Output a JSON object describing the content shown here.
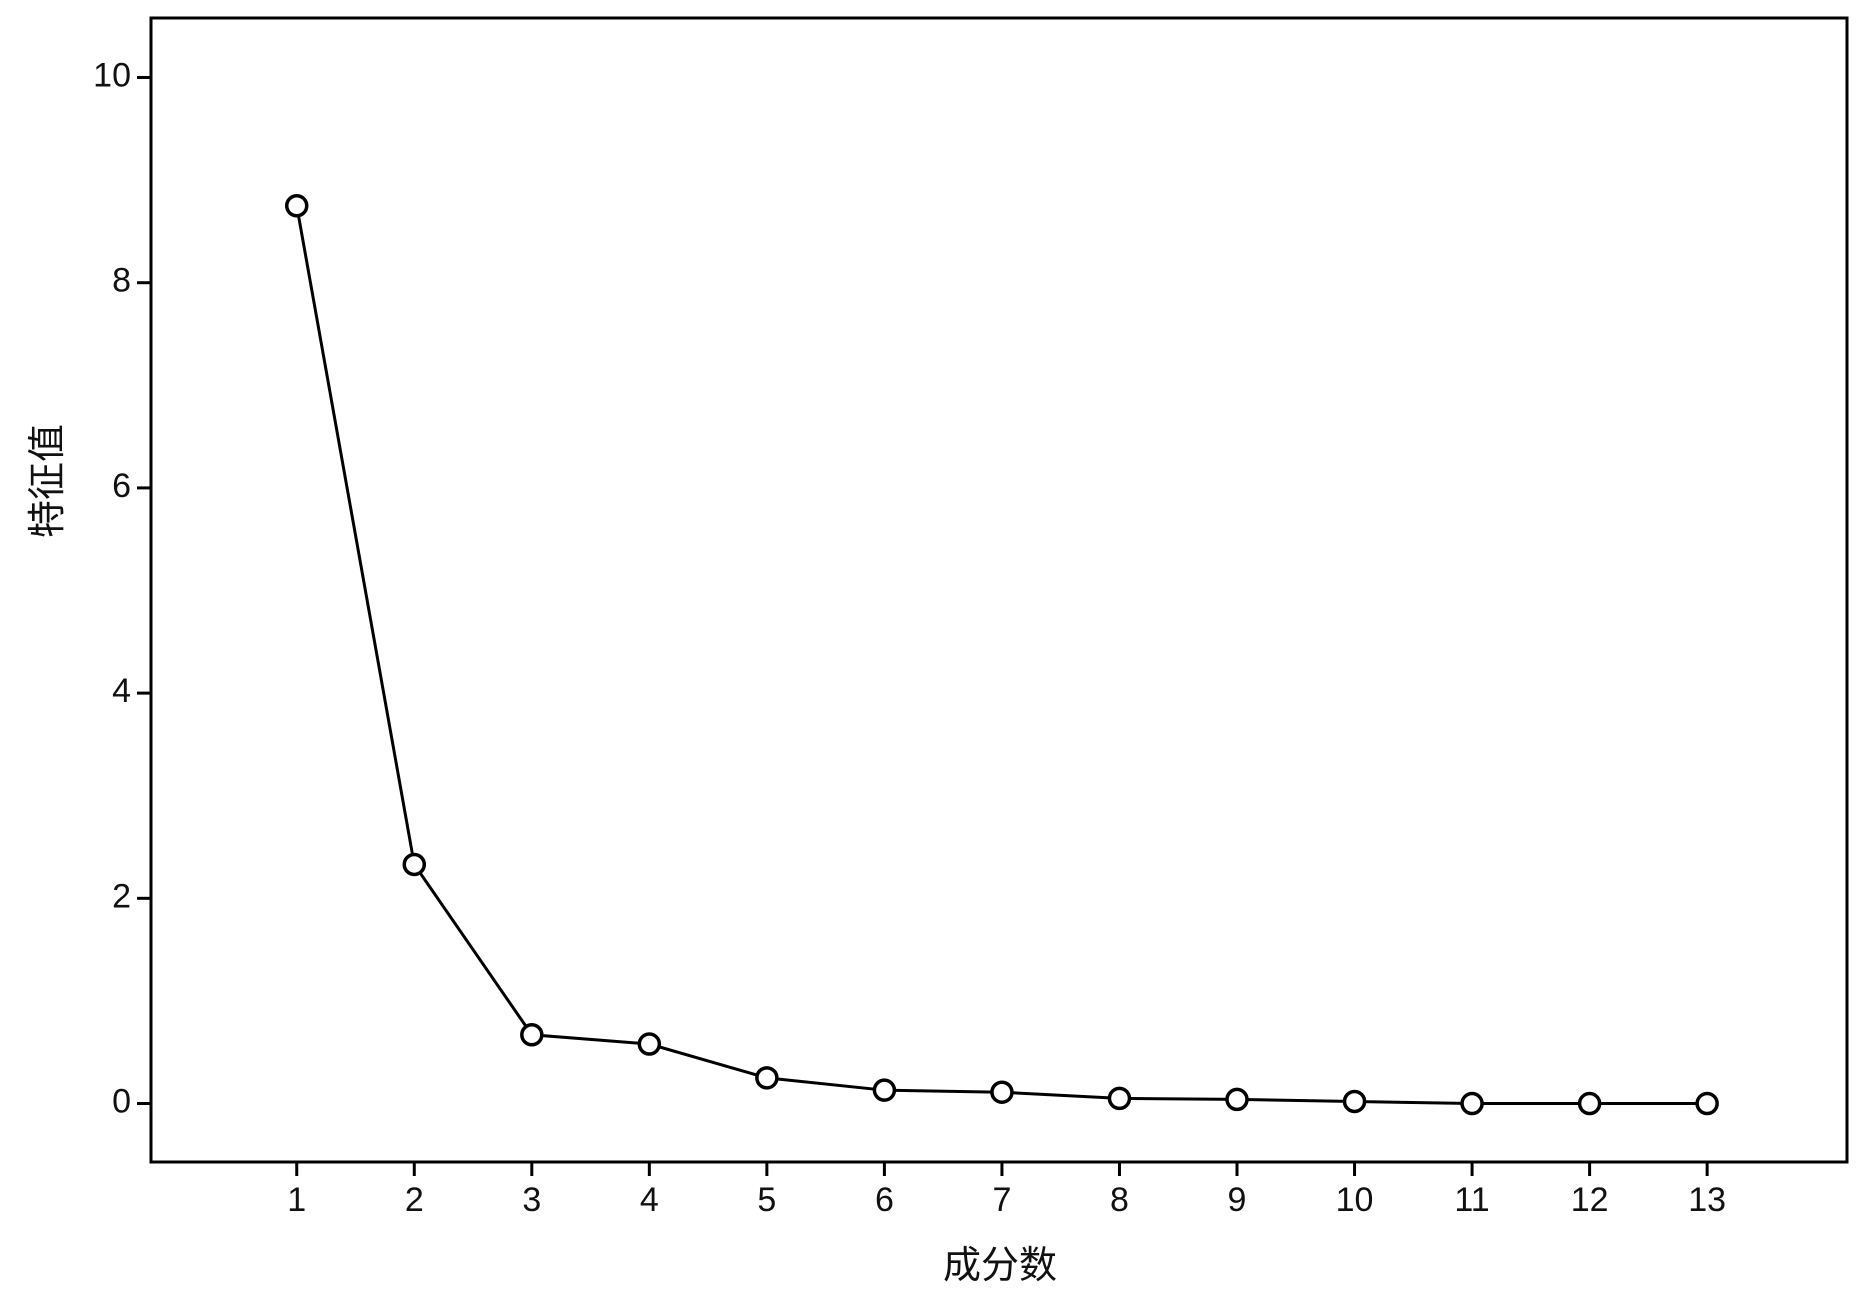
{
  "chart_data": {
    "type": "line",
    "x_label": "成分数",
    "y_label": "特征值",
    "x": [
      1,
      2,
      3,
      4,
      5,
      6,
      7,
      8,
      9,
      10,
      11,
      12,
      13
    ],
    "series": [
      {
        "color": "#000000",
        "values": [
          8.75,
          2.33,
          0.67,
          0.58,
          0.25,
          0.13,
          0.11,
          0.05,
          0.04,
          0.02,
          0.0,
          0.0,
          0.0
        ]
      }
    ],
    "xlim": [
      -0.24,
      14.19
    ],
    "ylim": [
      -0.57,
      10.58
    ],
    "xticks": [
      1,
      2,
      3,
      4,
      5,
      6,
      7,
      8,
      9,
      10,
      11,
      12,
      13
    ],
    "yticks": [
      0,
      2,
      4,
      6,
      8,
      10
    ],
    "markers": "open-circle"
  }
}
